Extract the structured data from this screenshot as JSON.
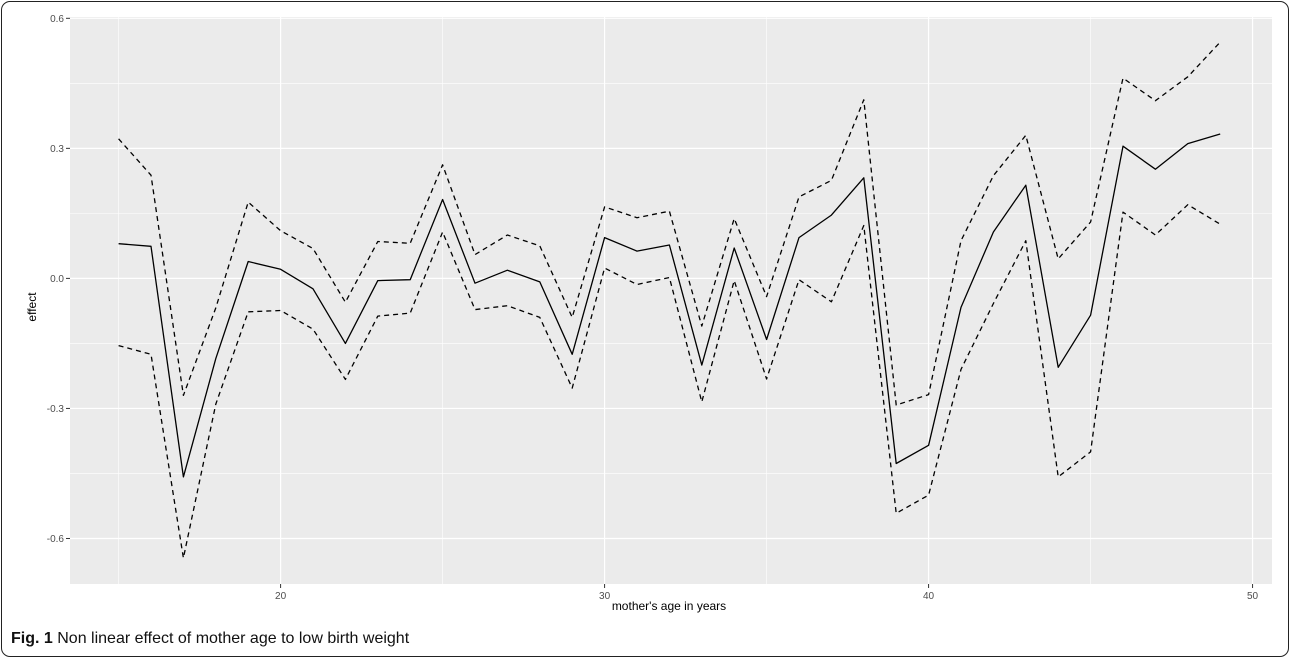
{
  "caption": {
    "label": "Fig. 1",
    "text": "Non linear effect of mother age to low birth weight"
  },
  "colors": {
    "panel": "#ebebeb",
    "grid": "#ffffff",
    "line": "#000000",
    "tick_text": "#4d4d4d",
    "axis_title": "#000000"
  },
  "chart_data": {
    "type": "line",
    "xlabel": "mother's age in years",
    "ylabel": "effect",
    "xlim": [
      13.5,
      50.6
    ],
    "ylim": [
      -0.705,
      0.603
    ],
    "x_ticks": [
      20,
      30,
      40,
      50
    ],
    "y_ticks": [
      -0.6,
      -0.3,
      0.0,
      0.3,
      0.6
    ],
    "x_tick_labels": [
      "20",
      "30",
      "40",
      "50"
    ],
    "y_tick_labels": [
      "-0.6",
      "-0.3",
      "0.0",
      "0.3",
      "0.6"
    ],
    "grid": true,
    "legend": "none",
    "x": [
      15,
      16,
      17,
      18,
      19,
      20,
      21,
      22,
      23,
      24,
      25,
      26,
      27,
      28,
      29,
      30,
      31,
      32,
      33,
      34,
      35,
      36,
      37,
      38,
      39,
      40,
      41,
      42,
      43,
      44,
      45,
      46,
      47,
      48,
      49
    ],
    "series": [
      {
        "style": "solid",
        "values": [
          0.08,
          0.074,
          -0.458,
          -0.185,
          0.039,
          0.021,
          -0.024,
          -0.15,
          -0.005,
          -0.003,
          0.182,
          -0.011,
          0.019,
          -0.008,
          -0.175,
          0.094,
          0.063,
          0.077,
          -0.2,
          0.07,
          -0.141,
          0.094,
          0.146,
          0.232,
          -0.427,
          -0.385,
          -0.067,
          0.107,
          0.215,
          -0.205,
          -0.085,
          0.305,
          0.252,
          0.311,
          0.333
        ]
      },
      {
        "style": "dashed",
        "values": [
          0.322,
          0.238,
          -0.27,
          -0.068,
          0.176,
          0.11,
          0.069,
          -0.055,
          0.085,
          0.081,
          0.262,
          0.055,
          0.1,
          0.075,
          -0.09,
          0.165,
          0.14,
          0.155,
          -0.11,
          0.138,
          -0.042,
          0.188,
          0.226,
          0.412,
          -0.292,
          -0.268,
          0.087,
          0.237,
          0.33,
          0.045,
          0.13,
          0.462,
          0.41,
          0.465,
          0.545
        ]
      },
      {
        "style": "dashed",
        "values": [
          -0.155,
          -0.175,
          -0.645,
          -0.29,
          -0.077,
          -0.074,
          -0.117,
          -0.233,
          -0.087,
          -0.08,
          0.107,
          -0.072,
          -0.063,
          -0.09,
          -0.253,
          0.024,
          -0.014,
          0.002,
          -0.285,
          -0.005,
          -0.232,
          -0.003,
          -0.054,
          0.122,
          -0.542,
          -0.5,
          -0.21,
          -0.058,
          0.087,
          -0.458,
          -0.4,
          0.153,
          0.1,
          0.17,
          0.125
        ]
      }
    ]
  }
}
